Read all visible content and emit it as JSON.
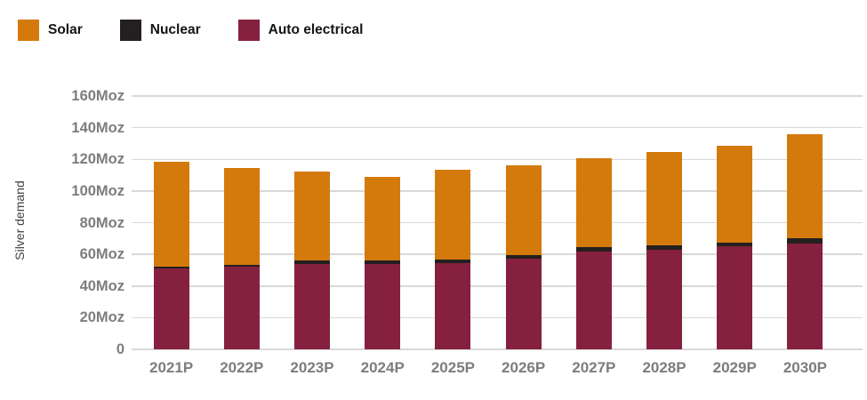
{
  "accent_colors": {
    "solar": "#D47A0C",
    "nuclear": "#241F20",
    "auto_electrical": "#86203F",
    "gridline": "#D8D8D8",
    "tick_text": "#7D7D7D"
  },
  "legend": {
    "items": [
      {
        "label": "Solar",
        "color": "#D47A0C"
      },
      {
        "label": "Nuclear",
        "color": "#241F20"
      },
      {
        "label": "Auto electrical",
        "color": "#86203F"
      }
    ]
  },
  "y_axis": {
    "title": "Silver demand",
    "ticks": [
      "160Moz",
      "140Moz",
      "120Moz",
      "100Moz",
      "80Moz",
      "60Moz",
      "40Moz",
      "20Moz",
      "0"
    ]
  },
  "chart_data": {
    "type": "bar",
    "stacked": true,
    "title": "",
    "xlabel": "",
    "ylabel": "Silver demand",
    "y_unit": "Moz",
    "ylim": [
      0,
      160
    ],
    "y_tick_step": 20,
    "grid": true,
    "legend_position": "top-left",
    "categories": [
      "2021P",
      "2022P",
      "2023P",
      "2024P",
      "2025P",
      "2026P",
      "2027P",
      "2028P",
      "2029P",
      "2030P"
    ],
    "series": [
      {
        "name": "Auto electrical",
        "color": "#86203F",
        "values": [
          51,
          52,
          54,
          54,
          54.5,
          57.5,
          62,
          63,
          65,
          67
        ]
      },
      {
        "name": "Nuclear",
        "color": "#241F20",
        "values": [
          1,
          1.5,
          2,
          2,
          2,
          2,
          2.5,
          2.5,
          2.5,
          3
        ]
      },
      {
        "name": "Solar",
        "color": "#D47A0C",
        "values": [
          66.5,
          61,
          56,
          53,
          57,
          56.5,
          56,
          59,
          61,
          66
        ]
      }
    ],
    "totals": [
      118.5,
      114.5,
      112,
      109,
      113.5,
      116,
      120.5,
      124.5,
      128.5,
      136
    ]
  }
}
